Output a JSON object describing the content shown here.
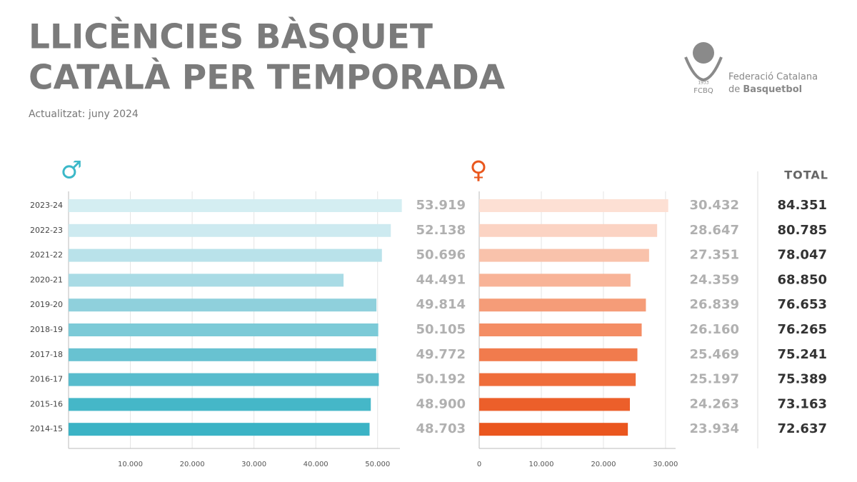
{
  "title": "LLICÈNCIES BÀSQUET",
  "title_line2": "CATALÀ PER TEMPORADA",
  "subtitle": "Actualitzat: juny 2024",
  "logo": {
    "year": "1933",
    "short": "FCBQ",
    "name_line1": "Federació Catalana",
    "name_line2_prefix": "de",
    "name_line2_bold": "Basquetbol"
  },
  "chart_data": [
    {
      "type": "hbar",
      "categories": [
        "2023-24",
        "2022-23",
        "2021-22",
        "2020-21",
        "2019-20",
        "2018-19",
        "2017-18",
        "2016-17",
        "2015-16",
        "2014-15"
      ],
      "series": [
        {
          "name": "♂",
          "color": "#3bb8c8",
          "colors": [
            "#d4eef2",
            "#cdeaf0",
            "#b9e2ea",
            "#a9dbe5",
            "#8fd0dc",
            "#7ccad7",
            "#68c2d1",
            "#58bccd",
            "#45b7c8",
            "#3bb3c5"
          ],
          "values": [
            53919,
            52138,
            50696,
            44491,
            49814,
            50105,
            49772,
            50192,
            48900,
            48703
          ],
          "value_labels": [
            "53.919",
            "52.138",
            "50.696",
            "44.491",
            "49.814",
            "50.105",
            "49.772",
            "50.192",
            "48.900",
            "48.703"
          ]
        }
      ],
      "xlim": [
        0,
        55000
      ],
      "xticks": [
        {
          "value": 10000,
          "label": "10.000"
        },
        {
          "value": 20000,
          "label": "20.000"
        },
        {
          "value": 30000,
          "label": "30.000"
        },
        {
          "value": 40000,
          "label": "40.000"
        },
        {
          "value": 50000,
          "label": "50.000"
        }
      ],
      "grid": true
    },
    {
      "type": "hbar",
      "series": [
        {
          "name": "♀",
          "color": "#e9571d",
          "colors": [
            "#fde0d4",
            "#fbd3c3",
            "#f9c2ab",
            "#f8b397",
            "#f59c78",
            "#f48d64",
            "#f17b4d",
            "#ef6d3b",
            "#ec5f2a",
            "#ea561e"
          ],
          "values": [
            30432,
            28647,
            27351,
            24359,
            26839,
            26160,
            25469,
            25197,
            24263,
            23934
          ],
          "value_labels": [
            "30.432",
            "28.647",
            "27.351",
            "24.359",
            "26.839",
            "26.160",
            "25.469",
            "25.197",
            "24.263",
            "23.934"
          ]
        }
      ],
      "xlim": [
        0,
        33000
      ],
      "xticks": [
        0,
        {
          "value": 10000,
          "label": "10.000"
        },
        {
          "value": 20000,
          "label": "20.000"
        },
        {
          "value": 30000,
          "label": "30.000"
        }
      ],
      "grid": true
    }
  ],
  "totals": {
    "title": "TOTAL",
    "values": [
      84351,
      80785,
      78047,
      68850,
      76653,
      76265,
      75241,
      75389,
      73163,
      72637
    ],
    "value_labels": [
      "84.351",
      "80.785",
      "78.047",
      "68.850",
      "76.653",
      "76.265",
      "75.241",
      "75.389",
      "73.163",
      "72.637"
    ]
  }
}
